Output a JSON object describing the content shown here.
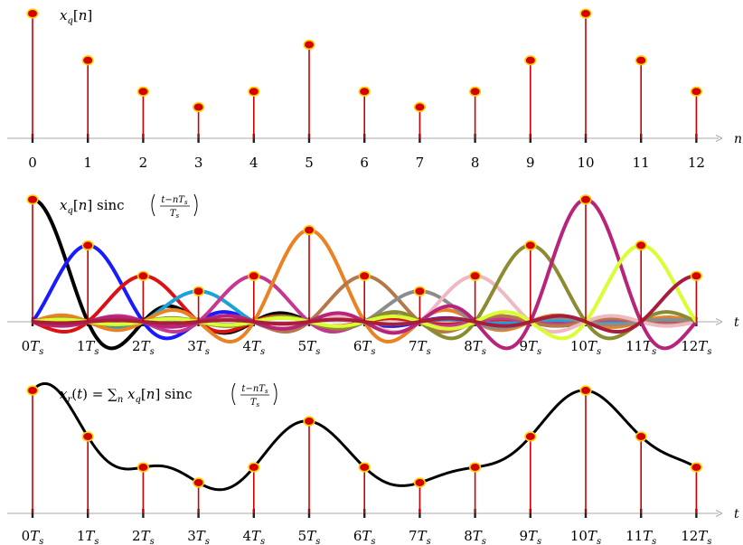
{
  "chart_data": [
    {
      "type": "stem",
      "label": "x_q[n]",
      "n": [
        0,
        1,
        2,
        3,
        4,
        5,
        6,
        7,
        8,
        9,
        10,
        11,
        12
      ],
      "values": [
        8,
        5,
        3,
        2,
        3,
        6,
        3,
        2,
        3,
        5,
        8,
        5,
        3
      ],
      "axis_label": "n",
      "tick_labels": [
        "0",
        "1",
        "2",
        "3",
        "4",
        "5",
        "6",
        "7",
        "8",
        "9",
        "10",
        "11",
        "12"
      ],
      "ylim": [
        0,
        8
      ]
    },
    {
      "type": "line",
      "label": "x_q[n] sinc((t−nT_s)/T_s)",
      "n": [
        0,
        1,
        2,
        3,
        4,
        5,
        6,
        7,
        8,
        9,
        10,
        11,
        12
      ],
      "values": [
        8,
        5,
        3,
        2,
        3,
        6,
        3,
        2,
        3,
        5,
        8,
        5,
        3
      ],
      "series_colors": [
        "#000000",
        "#1a1aff",
        "#dd1111",
        "#1aa3d9",
        "#c7368f",
        "#ea8222",
        "#b5784a",
        "#8c8c8c",
        "#f0b8c0",
        "#8b8b32",
        "#b8247a",
        "#d9ff33",
        "#a81c3c"
      ],
      "axis_label": "t",
      "tick_labels": [
        "0T_s",
        "1T_s",
        "2T_s",
        "3T_s",
        "4T_s",
        "5T_s",
        "6T_s",
        "7T_s",
        "8T_s",
        "9T_s",
        "10T_s",
        "11T_s",
        "12T_s"
      ]
    },
    {
      "type": "line",
      "label": "x_r(t) = Σ_n x_q[n] sinc((t−nT_s)/T_s)",
      "n": [
        0,
        1,
        2,
        3,
        4,
        5,
        6,
        7,
        8,
        9,
        10,
        11,
        12
      ],
      "values": [
        8,
        5,
        3,
        2,
        3,
        6,
        3,
        2,
        3,
        5,
        8,
        5,
        3
      ],
      "axis_label": "t",
      "tick_labels": [
        "0T_s",
        "1T_s",
        "2T_s",
        "3T_s",
        "4T_s",
        "5T_s",
        "6T_s",
        "7T_s",
        "8T_s",
        "9T_s",
        "10T_s",
        "11T_s",
        "12T_s"
      ]
    }
  ],
  "colors": {
    "stem": "#cc0000",
    "marker_fill": "#d40000",
    "marker_edge": "#ffd200",
    "axis": "#aaaaaa",
    "tick": "#222222",
    "recon": "#000000"
  }
}
